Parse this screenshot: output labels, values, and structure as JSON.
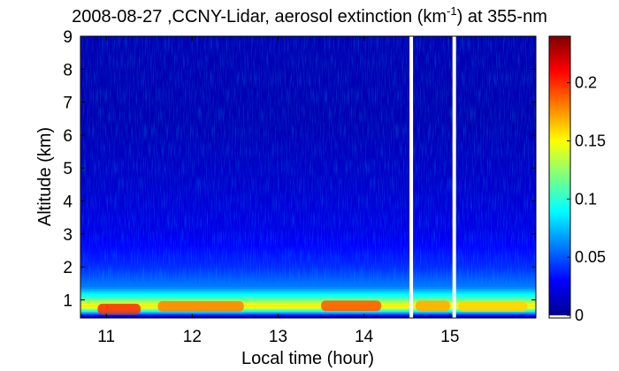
{
  "chart_data": {
    "type": "heatmap",
    "title_parts": {
      "pre": "2008-08-27 ,CCNY-Lidar, aerosol extinction (km",
      "sup": "-1",
      "post": ") at 355-nm"
    },
    "xlabel": "Local time (hour)",
    "ylabel": "Altitude (km)",
    "xlim": [
      10.7,
      16.0
    ],
    "ylim": [
      0.45,
      9.0
    ],
    "x_ticks": [
      11,
      12,
      13,
      14,
      15
    ],
    "x_tick_labels": [
      "11",
      "12",
      "13",
      "14",
      "15"
    ],
    "y_ticks": [
      1,
      2,
      3,
      4,
      5,
      6,
      7,
      8,
      9
    ],
    "y_tick_labels": [
      "1",
      "2",
      "3",
      "4",
      "5",
      "6",
      "7",
      "8",
      "9"
    ],
    "colorbar": {
      "colormap": "jet",
      "range": [
        0,
        0.24
      ],
      "ticks": [
        0,
        0.05,
        0.1,
        0.15,
        0.2
      ],
      "tick_labels": [
        "0",
        "0.05",
        "0.1",
        "0.15",
        "0.2"
      ]
    },
    "data_gaps_hours": [
      14.55,
      15.05
    ],
    "extinction_profile": [
      {
        "altitude_km": 0.5,
        "value": 0.01
      },
      {
        "altitude_km": 0.8,
        "value": 0.16
      },
      {
        "altitude_km": 1.1,
        "value": 0.1
      },
      {
        "altitude_km": 1.4,
        "value": 0.06
      },
      {
        "altitude_km": 2.0,
        "value": 0.04
      },
      {
        "altitude_km": 3.0,
        "value": 0.025
      },
      {
        "altitude_km": 4.5,
        "value": 0.018
      },
      {
        "altitude_km": 6.5,
        "value": 0.012
      },
      {
        "altitude_km": 9.0,
        "value": 0.012
      }
    ],
    "elevated_layer_segments": [
      {
        "start_hour": 10.9,
        "end_hour": 11.4,
        "altitude_km": 0.72,
        "value": 0.2
      },
      {
        "start_hour": 11.6,
        "end_hour": 12.6,
        "altitude_km": 0.8,
        "value": 0.18
      },
      {
        "start_hour": 13.5,
        "end_hour": 14.2,
        "altitude_km": 0.82,
        "value": 0.19
      },
      {
        "start_hour": 14.6,
        "end_hour": 15.0,
        "altitude_km": 0.82,
        "value": 0.17
      },
      {
        "start_hour": 15.1,
        "end_hour": 15.9,
        "altitude_km": 0.8,
        "value": 0.16
      }
    ]
  }
}
